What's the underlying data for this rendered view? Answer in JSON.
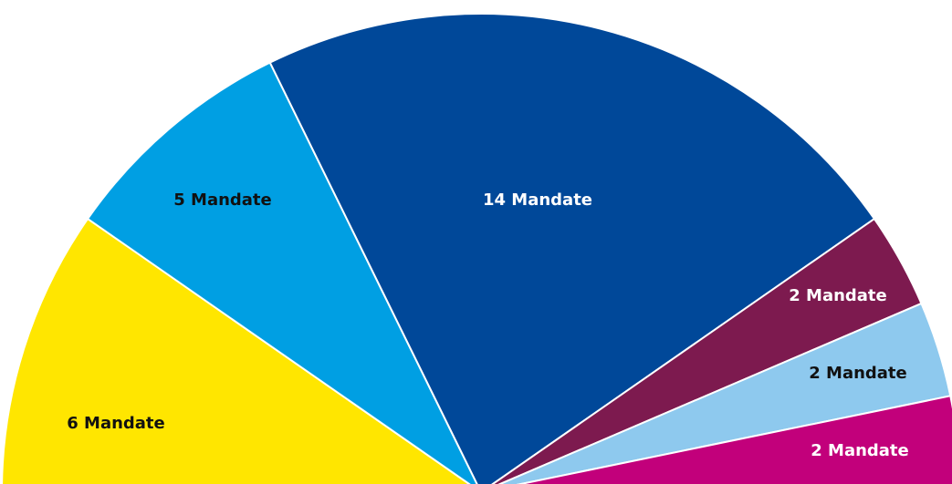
{
  "chart_data": {
    "type": "pie",
    "variant": "semicircle-parliament",
    "total_seats": 31,
    "slices": [
      {
        "label": "6 Mandate",
        "value": 6,
        "color": "#ffe600",
        "text_color": "#111111"
      },
      {
        "label": "5 Mandate",
        "value": 5,
        "color": "#009fe3",
        "text_color": "#111111"
      },
      {
        "label": "14 Mandate",
        "value": 14,
        "color": "#004899",
        "text_color": "#ffffff"
      },
      {
        "label": "2 Mandate",
        "value": 2,
        "color": "#7d1a4f",
        "text_color": "#ffffff"
      },
      {
        "label": "2 Mandate",
        "value": 2,
        "color": "#8ec9ee",
        "text_color": "#111111"
      },
      {
        "label": "2 Mandate",
        "value": 2,
        "color": "#c2007b",
        "text_color": "#ffffff"
      }
    ]
  }
}
